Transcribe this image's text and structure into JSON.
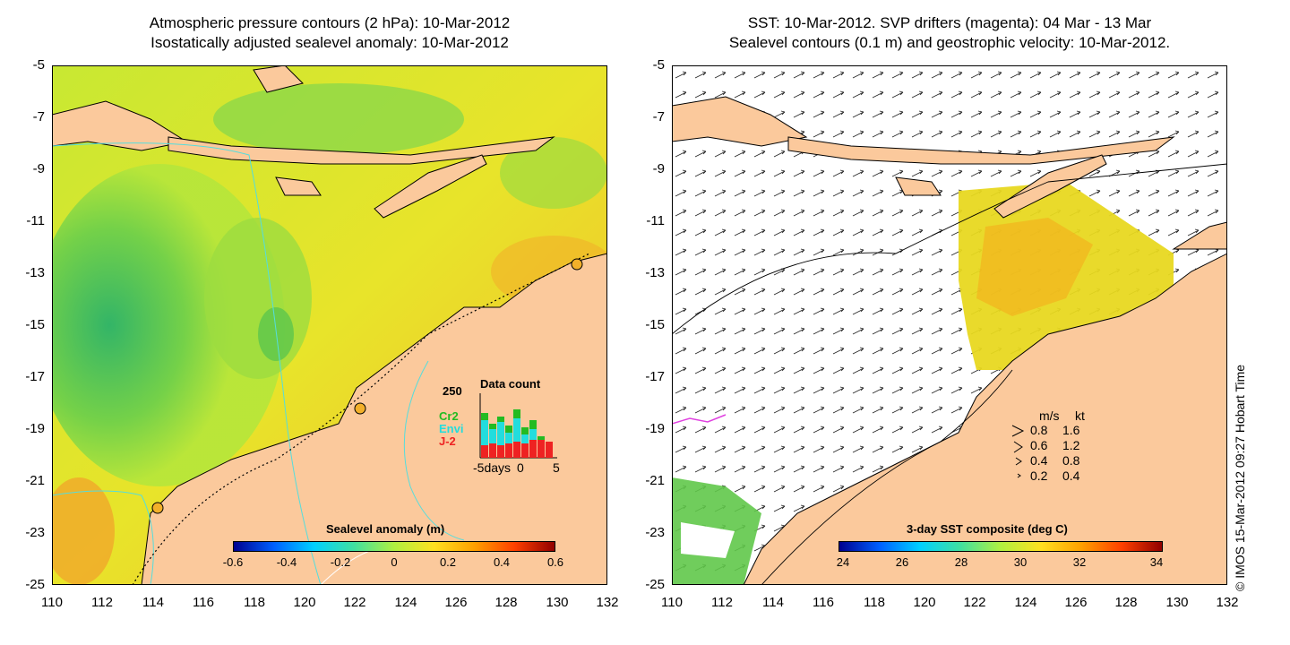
{
  "left_panel": {
    "title_line1": "Atmospheric pressure contours (2 hPa): 10-Mar-2012",
    "title_line2": "Isostatically adjusted sealevel anomaly: 10-Mar-2012",
    "colorbar_title": "Sealevel anomaly (m)",
    "colorbar_ticks": [
      "-0.6",
      "-0.4",
      "-0.2",
      "0",
      "0.2",
      "0.4",
      "0.6"
    ],
    "data_count": {
      "title": "Data count",
      "y_max_label": "250",
      "legend": [
        "Cr2",
        "Envi",
        "J-2"
      ],
      "legend_colors": [
        "#22bb22",
        "#22dddd",
        "#ee2222"
      ],
      "x_labels": [
        "-5days",
        "0",
        "5"
      ]
    }
  },
  "right_panel": {
    "title_line1": "SST: 10-Mar-2012. SVP drifters (magenta): 04 Mar - 13 Mar",
    "title_line2": "Sealevel contours (0.1 m) and geostrophic velocity: 10-Mar-2012.",
    "colorbar_title": "3-day SST composite (deg C)",
    "colorbar_ticks": [
      "24",
      "26",
      "28",
      "30",
      "32",
      "34"
    ],
    "speed_legend": {
      "header_ms": "m/s",
      "header_kt": "kt",
      "rows": [
        {
          "ms": "0.8",
          "kt": "1.6"
        },
        {
          "ms": "0.6",
          "kt": "1.2"
        },
        {
          "ms": "0.4",
          "kt": "0.8"
        },
        {
          "ms": "0.2",
          "kt": "0.4"
        }
      ]
    }
  },
  "axes": {
    "y_ticks": [
      "-5",
      "-7",
      "-9",
      "-11",
      "-13",
      "-15",
      "-17",
      "-19",
      "-21",
      "-23",
      "-25"
    ],
    "x_ticks": [
      "110",
      "112",
      "114",
      "116",
      "118",
      "120",
      "122",
      "124",
      "126",
      "128",
      "130",
      "132"
    ]
  },
  "stamp": "© IMOS 15-Mar-2012 09:27 Hobart Time",
  "colors": {
    "land": "#fbc99c",
    "coast": "#000000",
    "contour_cyan": "#55dddd",
    "drifter": "#e040e0"
  }
}
